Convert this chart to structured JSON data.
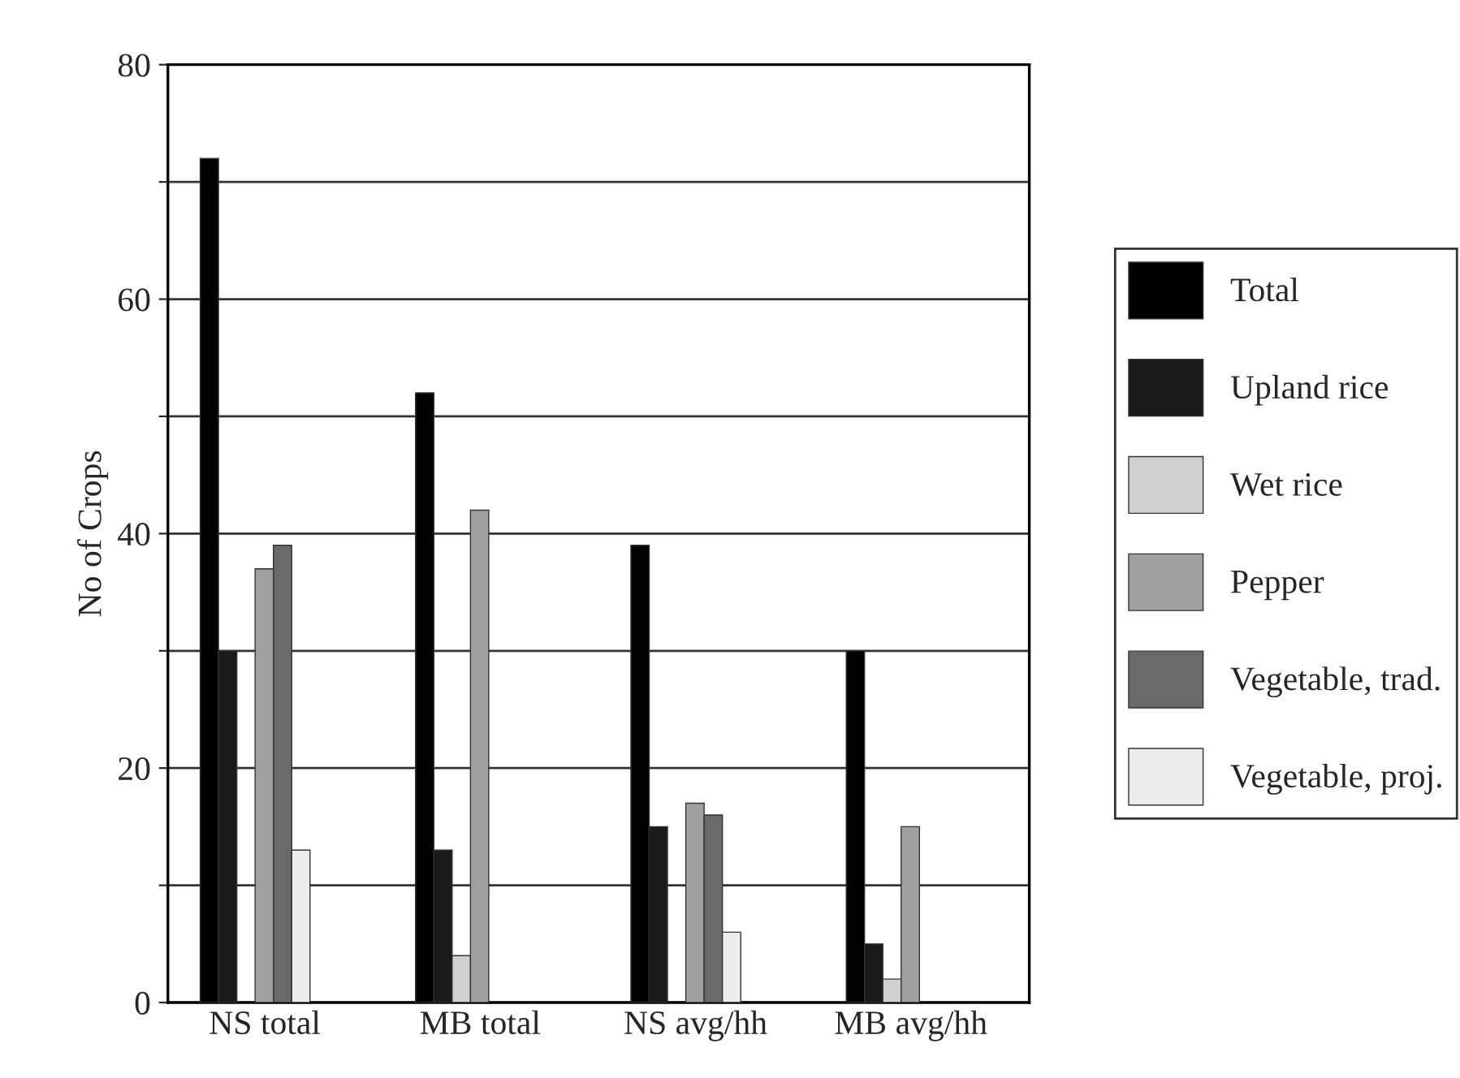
{
  "chart_data": {
    "type": "bar",
    "ylabel": "No of Crops",
    "categories": [
      "NS total",
      "MB total",
      "NS avg/hh",
      "MB avg/hh"
    ],
    "series": [
      {
        "name": "Total",
        "color": "#000000",
        "values": [
          72,
          52,
          39,
          30
        ]
      },
      {
        "name": "Upland rice",
        "color": "#1a1a1a",
        "values": [
          30,
          13,
          15,
          5
        ]
      },
      {
        "name": "Wet rice",
        "color": "#d0d0d0",
        "values": [
          null,
          4,
          null,
          2
        ]
      },
      {
        "name": "Pepper",
        "color": "#a0a0a0",
        "values": [
          37,
          42,
          17,
          15
        ]
      },
      {
        "name": "Vegetable, trad.",
        "color": "#6a6a6a",
        "values": [
          39,
          null,
          16,
          null
        ]
      },
      {
        "name": "Vegetable, proj.",
        "color": "#ececec",
        "values": [
          13,
          null,
          6,
          null
        ]
      }
    ],
    "ylim": [
      0,
      80
    ],
    "yticks": [
      0,
      {
        "value": 10,
        "label": null
      },
      20,
      {
        "value": 30,
        "label": null
      },
      40,
      {
        "value": 50,
        "label": null
      },
      60,
      {
        "value": 70,
        "label": null
      },
      80
    ],
    "grid": "y",
    "legend": "right"
  }
}
